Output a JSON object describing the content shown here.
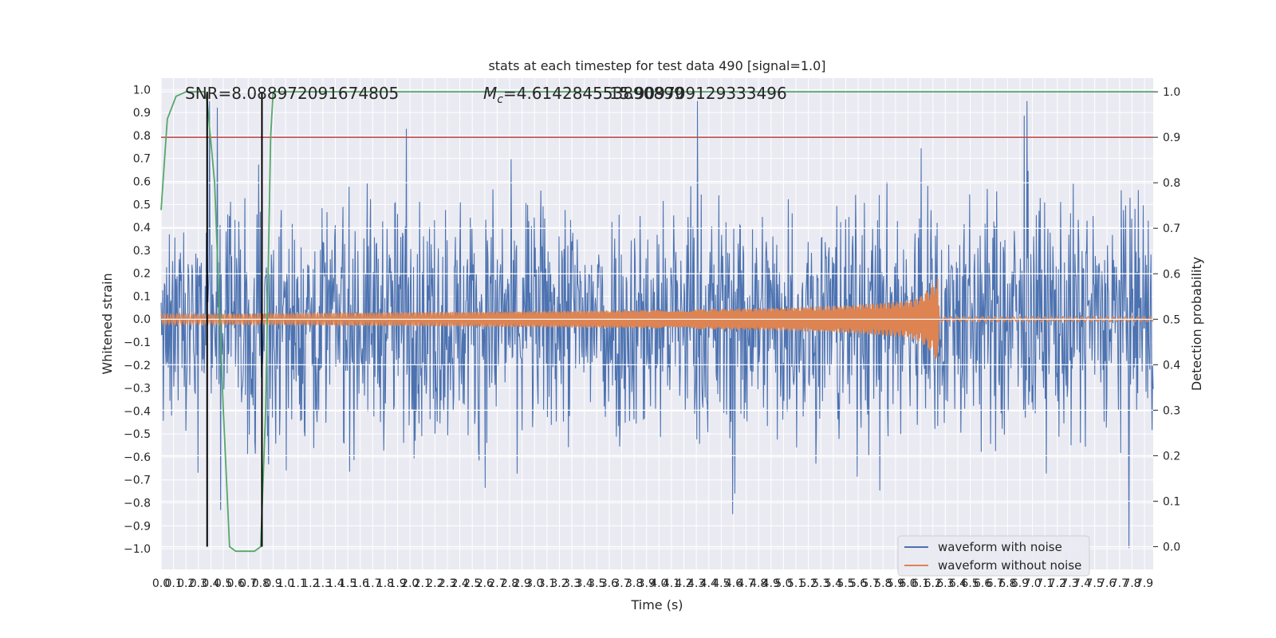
{
  "chart_data": {
    "type": "line",
    "title": "stats at each timestep for test data 490 [signal=1.0]",
    "xlabel": "Time (s)",
    "ylabel": "Whitened strain",
    "y2label": "Detection probability",
    "xlim": [
      0.0,
      7.97
    ],
    "ylim": [
      -1.09,
      1.05
    ],
    "y2lim": [
      -0.05,
      1.03
    ],
    "grid": true,
    "legend_position": "bottom-right",
    "x_ticks": [
      "0.0",
      "0.1",
      "0.2",
      "0.3",
      "0.4",
      "0.5",
      "0.6",
      "0.7",
      "0.8",
      "0.9",
      "1.0",
      "1.1",
      "1.2",
      "1.3",
      "1.4",
      "1.5",
      "1.6",
      "1.7",
      "1.8",
      "1.9",
      "2.0",
      "2.1",
      "2.2",
      "2.3",
      "2.4",
      "2.5",
      "2.6",
      "2.7",
      "2.8",
      "2.9",
      "3.0",
      "3.1",
      "3.2",
      "3.3",
      "3.4",
      "3.5",
      "3.6",
      "3.7",
      "3.8",
      "3.9",
      "4.0",
      "4.1",
      "4.2",
      "4.3",
      "4.4",
      "4.5",
      "4.6",
      "4.7",
      "4.8",
      "4.9",
      "5.0",
      "5.1",
      "5.2",
      "5.3",
      "5.4",
      "5.5",
      "5.6",
      "5.7",
      "5.8",
      "5.9",
      "6.0",
      "6.1",
      "6.2",
      "6.3",
      "6.4",
      "6.5",
      "6.6",
      "6.7",
      "6.8",
      "6.9",
      "7.0",
      "7.1",
      "7.2",
      "7.3",
      "7.4",
      "7.5",
      "7.6",
      "7.7",
      "7.8",
      "7.9"
    ],
    "y_ticks": [
      "1.0",
      "0.9",
      "0.8",
      "0.7",
      "0.6",
      "0.5",
      "0.4",
      "0.3",
      "0.2",
      "0.1",
      "0.0",
      "−0.1",
      "−0.2",
      "−0.3",
      "−0.4",
      "−0.5",
      "−0.6",
      "−0.7",
      "−0.8",
      "−0.9",
      "−1.0"
    ],
    "y2_ticks": [
      "1.0",
      "0.9",
      "0.8",
      "0.7",
      "0.6",
      "0.5",
      "0.4",
      "0.3",
      "0.2",
      "0.1",
      "0.0"
    ],
    "annotations": {
      "snr": "SNR=8.088972091674805",
      "mc_prefix": "M",
      "mc_sub": "c",
      "mc_value": "=4.614284553890899",
      "overlap": "15.909709129333496"
    },
    "series": [
      {
        "name": "waveform with noise",
        "color": "#4c72b0",
        "axis": "left",
        "kind": "noise",
        "amplitude_envelope": 0.95
      },
      {
        "name": "waveform without noise",
        "color": "#dd8452",
        "axis": "left",
        "kind": "chirp",
        "envelope": [
          [
            0.0,
            0.02
          ],
          [
            1.0,
            0.025
          ],
          [
            2.0,
            0.03
          ],
          [
            3.0,
            0.035
          ],
          [
            4.0,
            0.04
          ],
          [
            5.0,
            0.05
          ],
          [
            5.5,
            0.06
          ],
          [
            6.0,
            0.08
          ],
          [
            6.1,
            0.1
          ],
          [
            6.2,
            0.15
          ],
          [
            6.24,
            0.19
          ],
          [
            6.25,
            0.01
          ],
          [
            7.97,
            0.01
          ]
        ]
      },
      {
        "name": "",
        "color": "#55a868",
        "axis": "right",
        "kind": "probability",
        "points": [
          [
            0.0,
            0.74
          ],
          [
            0.05,
            0.94
          ],
          [
            0.12,
            0.99
          ],
          [
            0.2,
            1.0
          ],
          [
            0.35,
            1.0
          ],
          [
            0.37,
            0.98
          ],
          [
            0.43,
            0.8
          ],
          [
            0.5,
            0.3
          ],
          [
            0.55,
            0.0
          ],
          [
            0.6,
            -0.01
          ],
          [
            0.7,
            -0.01
          ],
          [
            0.75,
            -0.01
          ],
          [
            0.8,
            0.0
          ],
          [
            0.84,
            0.3
          ],
          [
            0.86,
            0.6
          ],
          [
            0.88,
            0.9
          ],
          [
            0.9,
            1.0
          ],
          [
            7.97,
            1.0
          ]
        ]
      }
    ],
    "threshold": {
      "value": 0.9,
      "color": "#c44e52",
      "axis": "right"
    },
    "vlines": [
      0.37,
      0.81
    ]
  }
}
